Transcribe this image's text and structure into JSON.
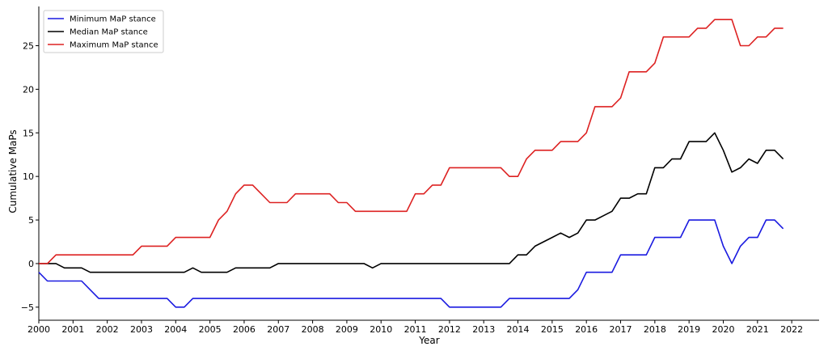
{
  "chart_data": {
    "type": "line",
    "title": "",
    "xlabel": "Year",
    "ylabel": "Cumulative MaPs",
    "xlim": [
      2000,
      2022.8
    ],
    "ylim": [
      -6.5,
      29.5
    ],
    "xticks": [
      2000,
      2001,
      2002,
      2003,
      2004,
      2005,
      2006,
      2007,
      2008,
      2009,
      2010,
      2011,
      2012,
      2013,
      2014,
      2015,
      2016,
      2017,
      2018,
      2019,
      2020,
      2021,
      2022
    ],
    "yticks": [
      -5,
      0,
      5,
      10,
      15,
      20,
      25
    ],
    "grid": false,
    "legend_position": "top-left",
    "series": [
      {
        "name": "Minimum MaP stance",
        "color": "#1a1ae0",
        "x": [
          2000.0,
          2000.25,
          2000.5,
          2000.75,
          2001.0,
          2001.25,
          2001.5,
          2001.75,
          2002.0,
          2002.25,
          2002.5,
          2002.75,
          2003.0,
          2003.25,
          2003.5,
          2003.75,
          2004.0,
          2004.25,
          2004.5,
          2004.75,
          2005.0,
          2005.25,
          2005.5,
          2005.75,
          2006.0,
          2006.25,
          2006.5,
          2006.75,
          2007.0,
          2007.25,
          2007.5,
          2007.75,
          2008.0,
          2008.25,
          2008.5,
          2008.75,
          2009.0,
          2009.25,
          2009.5,
          2009.75,
          2010.0,
          2010.25,
          2010.5,
          2010.75,
          2011.0,
          2011.25,
          2011.5,
          2011.75,
          2012.0,
          2012.25,
          2012.5,
          2012.75,
          2013.0,
          2013.25,
          2013.5,
          2013.75,
          2014.0,
          2014.25,
          2014.5,
          2014.75,
          2015.0,
          2015.25,
          2015.5,
          2015.75,
          2016.0,
          2016.25,
          2016.5,
          2016.75,
          2017.0,
          2017.25,
          2017.5,
          2017.75,
          2018.0,
          2018.25,
          2018.5,
          2018.75,
          2019.0,
          2019.25,
          2019.5,
          2019.75,
          2020.0,
          2020.25,
          2020.5,
          2020.75,
          2021.0,
          2021.25,
          2021.5,
          2021.75
        ],
        "y": [
          -1,
          -2,
          -2,
          -2,
          -2,
          -2,
          -3,
          -4,
          -4,
          -4,
          -4,
          -4,
          -4,
          -4,
          -4,
          -4,
          -5,
          -5,
          -4,
          -4,
          -4,
          -4,
          -4,
          -4,
          -4,
          -4,
          -4,
          -4,
          -4,
          -4,
          -4,
          -4,
          -4,
          -4,
          -4,
          -4,
          -4,
          -4,
          -4,
          -4,
          -4,
          -4,
          -4,
          -4,
          -4,
          -4,
          -4,
          -4,
          -5,
          -5,
          -5,
          -5,
          -5,
          -5,
          -5,
          -4,
          -4,
          -4,
          -4,
          -4,
          -4,
          -4,
          -4,
          -3,
          -1,
          -1,
          -1,
          -1,
          1,
          1,
          1,
          1,
          3,
          3,
          3,
          3,
          5,
          5,
          5,
          5,
          2,
          0,
          2,
          3,
          3,
          5,
          5,
          4
        ]
      },
      {
        "name": "Median MaP stance",
        "color": "#000000",
        "x": [
          2000.0,
          2000.25,
          2000.5,
          2000.75,
          2001.0,
          2001.25,
          2001.5,
          2001.75,
          2002.0,
          2002.25,
          2002.5,
          2002.75,
          2003.0,
          2003.25,
          2003.5,
          2003.75,
          2004.0,
          2004.25,
          2004.5,
          2004.75,
          2005.0,
          2005.25,
          2005.5,
          2005.75,
          2006.0,
          2006.25,
          2006.5,
          2006.75,
          2007.0,
          2007.25,
          2007.5,
          2007.75,
          2008.0,
          2008.25,
          2008.5,
          2008.75,
          2009.0,
          2009.25,
          2009.5,
          2009.75,
          2010.0,
          2010.25,
          2010.5,
          2010.75,
          2011.0,
          2011.25,
          2011.5,
          2011.75,
          2012.0,
          2012.25,
          2012.5,
          2012.75,
          2013.0,
          2013.25,
          2013.5,
          2013.75,
          2014.0,
          2014.25,
          2014.5,
          2014.75,
          2015.0,
          2015.25,
          2015.5,
          2015.75,
          2016.0,
          2016.25,
          2016.5,
          2016.75,
          2017.0,
          2017.25,
          2017.5,
          2017.75,
          2018.0,
          2018.25,
          2018.5,
          2018.75,
          2019.0,
          2019.25,
          2019.5,
          2019.75,
          2020.0,
          2020.25,
          2020.5,
          2020.75,
          2021.0,
          2021.25,
          2021.5,
          2021.75
        ],
        "y": [
          0,
          0,
          0,
          -0.5,
          -0.5,
          -0.5,
          -1,
          -1,
          -1,
          -1,
          -1,
          -1,
          -1,
          -1,
          -1,
          -1,
          -1,
          -1,
          -0.5,
          -1,
          -1,
          -1,
          -1,
          -0.5,
          -0.5,
          -0.5,
          -0.5,
          -0.5,
          0,
          0,
          0,
          0,
          0,
          0,
          0,
          0,
          0,
          0,
          0,
          -0.5,
          0,
          0,
          0,
          0,
          0,
          0,
          0,
          0,
          0,
          0,
          0,
          0,
          0,
          0,
          0,
          0,
          1,
          1,
          2,
          2.5,
          3,
          3.5,
          3,
          3.5,
          5,
          5,
          5.5,
          6,
          7.5,
          7.5,
          8,
          8,
          11,
          11,
          12,
          12,
          14,
          14,
          14,
          15,
          13,
          10.5,
          11,
          12,
          11.5,
          13,
          13,
          12
        ]
      },
      {
        "name": "Maximum MaP stance",
        "color": "#dd2222",
        "x": [
          2000.0,
          2000.25,
          2000.5,
          2000.75,
          2001.0,
          2001.25,
          2001.5,
          2001.75,
          2002.0,
          2002.25,
          2002.5,
          2002.75,
          2003.0,
          2003.25,
          2003.5,
          2003.75,
          2004.0,
          2004.25,
          2004.5,
          2004.75,
          2005.0,
          2005.25,
          2005.5,
          2005.75,
          2006.0,
          2006.25,
          2006.5,
          2006.75,
          2007.0,
          2007.25,
          2007.5,
          2007.75,
          2008.0,
          2008.25,
          2008.5,
          2008.75,
          2009.0,
          2009.25,
          2009.5,
          2009.75,
          2010.0,
          2010.25,
          2010.5,
          2010.75,
          2011.0,
          2011.25,
          2011.5,
          2011.75,
          2012.0,
          2012.25,
          2012.5,
          2012.75,
          2013.0,
          2013.25,
          2013.5,
          2013.75,
          2014.0,
          2014.25,
          2014.5,
          2014.75,
          2015.0,
          2015.25,
          2015.5,
          2015.75,
          2016.0,
          2016.25,
          2016.5,
          2016.75,
          2017.0,
          2017.25,
          2017.5,
          2017.75,
          2018.0,
          2018.25,
          2018.5,
          2018.75,
          2019.0,
          2019.25,
          2019.5,
          2019.75,
          2020.0,
          2020.25,
          2020.5,
          2020.75,
          2021.0,
          2021.25,
          2021.5,
          2021.75
        ],
        "y": [
          0,
          0,
          1,
          1,
          1,
          1,
          1,
          1,
          1,
          1,
          1,
          1,
          2,
          2,
          2,
          2,
          3,
          3,
          3,
          3,
          3,
          5,
          6,
          8,
          9,
          9,
          8,
          7,
          7,
          7,
          8,
          8,
          8,
          8,
          8,
          7,
          7,
          6,
          6,
          6,
          6,
          6,
          6,
          6,
          8,
          8,
          9,
          9,
          11,
          11,
          11,
          11,
          11,
          11,
          11,
          10,
          10,
          12,
          13,
          13,
          13,
          14,
          14,
          14,
          15,
          18,
          18,
          18,
          19,
          22,
          22,
          22,
          23,
          26,
          26,
          26,
          26,
          27,
          27,
          28,
          28,
          28,
          25,
          25,
          26,
          26,
          27,
          27
        ]
      }
    ]
  }
}
